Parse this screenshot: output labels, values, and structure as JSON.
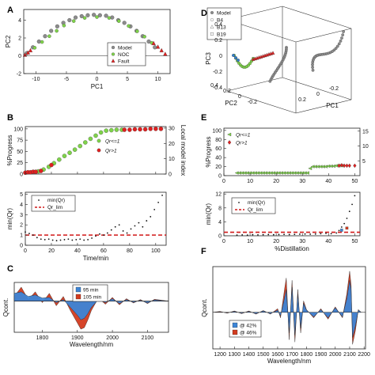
{
  "panels": {
    "A": "A",
    "B": "B",
    "C": "C",
    "D": "D",
    "E": "E",
    "F": "F"
  },
  "chart_data": [
    {
      "id": "A",
      "type": "scatter",
      "xlabel": "PC1",
      "ylabel": "PC2",
      "xlim": [
        -12,
        12
      ],
      "ylim": [
        -2,
        5.2
      ],
      "xticks": [
        -10,
        -5,
        0,
        5,
        10
      ],
      "yticks": [
        -2,
        0,
        2,
        4
      ],
      "xtick_labels": [
        "-10",
        "-5",
        "0",
        "5",
        "10"
      ],
      "ytick_labels": [
        "-2",
        "0",
        "2",
        "4"
      ],
      "legend": [
        "Model",
        "NOC",
        "Fault"
      ],
      "legend_position": "right",
      "series": [
        {
          "name": "Model",
          "color": "#8c8c8c",
          "x": [
            -11.5,
            -10.5,
            -9.5,
            -8.5,
            -7.5,
            -6.5,
            -5.5,
            -4.5,
            -3.5,
            -2.5,
            -1.5,
            -0.5,
            0.5,
            1.5,
            2.5,
            3.5,
            4.5,
            5.5,
            6.5,
            7.5,
            8.5,
            9.5
          ],
          "y": [
            0.3,
            0.95,
            1.6,
            2.2,
            2.8,
            3.3,
            3.7,
            4.0,
            4.3,
            4.45,
            4.55,
            4.6,
            4.55,
            4.5,
            4.3,
            4.0,
            3.7,
            3.3,
            2.8,
            2.2,
            1.6,
            0.95
          ]
        },
        {
          "name": "NOC",
          "color": "#7fd34a",
          "x": [
            -10.2,
            -9,
            -7.8,
            -6.6,
            -5.4,
            -3.8,
            -2,
            0,
            2,
            3.6,
            5.2,
            6.6,
            7.8,
            9
          ],
          "y": [
            0.9,
            1.55,
            2.2,
            2.8,
            3.4,
            3.9,
            4.25,
            4.35,
            4.25,
            3.9,
            3.35,
            2.75,
            2.15,
            1.45
          ]
        },
        {
          "name": "Fault",
          "color": "#e02020",
          "x": [
            -11.8,
            -11.3,
            -10.9,
            9.3,
            10,
            10.6,
            11.2
          ],
          "y": [
            0.1,
            0.35,
            0.6,
            1.4,
            1.0,
            0.6,
            0.2
          ]
        }
      ]
    },
    {
      "id": "B_top",
      "type": "scatter",
      "xlabel": "",
      "ylabel": "%Progress",
      "ylabel_right": "Local model index",
      "xlim": [
        0,
        108
      ],
      "ylim": [
        0,
        105
      ],
      "ylim_right": [
        0,
        31
      ],
      "xticks": [
        0,
        20,
        40,
        60,
        80,
        100
      ],
      "yticks": [
        0,
        25,
        50,
        75,
        100
      ],
      "yticks_right": [
        0,
        10,
        20,
        30
      ],
      "ytick_labels": [
        "0",
        "25",
        "50",
        "75",
        "100"
      ],
      "ytick_labels_right": [
        "0",
        "10",
        "20",
        "30"
      ],
      "legend": [
        "Qr<=1",
        "Qr>1"
      ],
      "legend_position": "center-right",
      "series": [
        {
          "name": "Qr<=1",
          "color": "#7fd34a",
          "x": [
            10,
            14,
            18,
            22,
            26,
            30,
            34,
            38,
            42,
            46,
            50,
            54,
            58,
            62,
            66,
            70,
            74
          ],
          "y": [
            6,
            10,
            16,
            24,
            32,
            40,
            47,
            54,
            62,
            70,
            78,
            85,
            92,
            96,
            97,
            98,
            98
          ]
        },
        {
          "name": "Qr>1",
          "color": "#e02020",
          "x": [
            0,
            2,
            4,
            6,
            8,
            12,
            20,
            76,
            80,
            84,
            88,
            92,
            96,
            100,
            104
          ],
          "y": [
            3,
            4,
            4,
            5,
            5,
            7,
            20,
            98,
            98,
            99,
            99,
            99,
            100,
            100,
            100
          ]
        }
      ]
    },
    {
      "id": "B_bottom",
      "type": "scatter",
      "xlabel": "Time/min",
      "ylabel": "min(Qr)",
      "xlim": [
        0,
        108
      ],
      "ylim": [
        0,
        5.2
      ],
      "xticks": [
        0,
        20,
        40,
        60,
        80,
        100
      ],
      "yticks": [
        0,
        1,
        2,
        3,
        4,
        5
      ],
      "xtick_labels": [
        "0",
        "20",
        "40",
        "60",
        "80",
        "100"
      ],
      "ytick_labels": [
        "0",
        "1",
        "2",
        "3",
        "4",
        "5"
      ],
      "legend": [
        "min(Qr)",
        "Qr_lim"
      ],
      "legend_position": "top-left",
      "threshold": 1,
      "series": [
        {
          "name": "min(Qr)",
          "color": "#111111",
          "x": [
            0,
            3,
            6,
            9,
            12,
            15,
            18,
            21,
            24,
            27,
            30,
            33,
            36,
            39,
            42,
            45,
            48,
            51,
            54,
            57,
            60,
            63,
            66,
            69,
            72,
            75,
            78,
            81,
            84,
            87,
            90,
            93,
            96,
            99,
            102,
            105
          ],
          "y": [
            1.3,
            1.15,
            1.0,
            0.75,
            0.6,
            0.55,
            0.6,
            0.5,
            0.45,
            0.5,
            0.55,
            0.6,
            0.5,
            0.55,
            0.6,
            0.5,
            0.55,
            0.7,
            0.9,
            1.1,
            1.0,
            1.2,
            1.5,
            1.8,
            2.0,
            1.4,
            1.2,
            1.6,
            1.9,
            2.2,
            1.8,
            2.4,
            2.8,
            3.5,
            4.2,
            4.9
          ]
        }
      ]
    },
    {
      "id": "C",
      "type": "area",
      "xlabel": "Wavelength/nm",
      "ylabel": "Qcont.",
      "xlim": [
        1720,
        2160
      ],
      "ylim": [
        -1,
        0.6
      ],
      "xticks": [
        1800,
        1900,
        2000,
        2100
      ],
      "xtick_labels": [
        "1800",
        "1900",
        "2000",
        "2100"
      ],
      "legend": [
        "95 min",
        "105 min"
      ],
      "legend_position": "top-center",
      "x": [
        1720,
        1740,
        1760,
        1780,
        1800,
        1820,
        1840,
        1860,
        1880,
        1900,
        1910,
        1920,
        1930,
        1940,
        1960,
        1980,
        2000,
        2020,
        2040,
        2060,
        2080,
        2100,
        2120,
        2140,
        2160
      ],
      "series": [
        {
          "name": "95 min",
          "color": "#3d85d6",
          "values": [
            0.25,
            0.3,
            0.15,
            0.2,
            0.1,
            0.12,
            -0.05,
            0.05,
            -0.2,
            -0.45,
            -0.6,
            -0.55,
            -0.4,
            -0.2,
            0.05,
            -0.05,
            0.08,
            -0.08,
            0.05,
            -0.04,
            0.03,
            -0.06,
            0.04,
            0.02,
            0.0
          ]
        },
        {
          "name": "105 min",
          "color": "#d33b1f",
          "values": [
            0.15,
            0.45,
            0.05,
            0.3,
            -0.05,
            0.25,
            -0.15,
            0.15,
            -0.3,
            -0.7,
            -0.9,
            -0.85,
            -0.6,
            -0.3,
            0.1,
            -0.1,
            0.12,
            -0.12,
            0.08,
            -0.06,
            0.05,
            -0.08,
            0.06,
            0.03,
            0.0
          ]
        }
      ]
    },
    {
      "id": "D",
      "type": "scatter",
      "dims": 3,
      "xlabel": "PC1",
      "ylabel": "PC2",
      "zlabel": "PC3",
      "x_ticks": [
        "0.2",
        "0",
        "-0.2"
      ],
      "y_ticks": [
        "0.4",
        "0.2",
        "0",
        "-0.2"
      ],
      "z_ticks": [
        "0.4",
        "0.2",
        "0",
        "-0.2",
        "-0.4"
      ],
      "legend": [
        "Model",
        "B4",
        "B13",
        "B19"
      ],
      "legend_position": "top-left",
      "series": [
        {
          "name": "Model",
          "color": "#8c8c8c"
        },
        {
          "name": "B4",
          "color": "#2f7fd0"
        },
        {
          "name": "B13",
          "color": "#7fd34a"
        },
        {
          "name": "B19",
          "color": "#e02020"
        }
      ]
    },
    {
      "id": "E_top",
      "type": "scatter",
      "xlabel": "",
      "ylabel": "%Progress",
      "ylabel_right": "Local model index",
      "xlim": [
        0,
        52
      ],
      "ylim": [
        0,
        105
      ],
      "ylim_right": [
        0,
        16
      ],
      "xticks": [
        0,
        10,
        20,
        30,
        40,
        50
      ],
      "yticks": [
        0,
        20,
        40,
        60,
        80,
        100
      ],
      "yticks_right": [
        5,
        10,
        15
      ],
      "xtick_labels": [
        "0",
        "10",
        "20",
        "30",
        "40",
        "50"
      ],
      "ytick_labels": [
        "0",
        "20",
        "40",
        "60",
        "80",
        "100"
      ],
      "ytick_labels_right": [
        "5",
        "10",
        "15"
      ],
      "legend": [
        "Qr<=1",
        "Qr>1"
      ],
      "legend_position": "top-left",
      "series": [
        {
          "name": "Qr<=1",
          "color": "#7fd34a",
          "x": [
            5,
            6,
            7,
            8,
            9,
            10,
            11,
            12,
            13,
            14,
            15,
            16,
            17,
            18,
            19,
            20,
            21,
            22,
            23,
            24,
            25,
            26,
            27,
            28,
            29,
            30,
            31,
            32,
            33,
            34,
            35,
            36,
            37,
            38,
            39,
            40,
            41,
            42,
            43,
            44,
            45
          ],
          "y": [
            6,
            6,
            6,
            6,
            6,
            6,
            6,
            6,
            6,
            6,
            6,
            6,
            6,
            6,
            6,
            6,
            6,
            6,
            6,
            6,
            6,
            6,
            6,
            6,
            6,
            6,
            6,
            6,
            16,
            20,
            20,
            20,
            20,
            20,
            20,
            21,
            21,
            21,
            22,
            22,
            22
          ]
        },
        {
          "name": "Qr>1",
          "color": "#e02020",
          "x": [
            44,
            45,
            46,
            47,
            48,
            50
          ],
          "y": [
            22,
            23,
            22,
            22,
            22,
            22
          ]
        }
      ]
    },
    {
      "id": "E_bottom",
      "type": "scatter",
      "xlabel": "%Distillation",
      "ylabel": "min(Qr)",
      "xlim": [
        0,
        52
      ],
      "ylim": [
        0,
        12.5
      ],
      "xticks": [
        0,
        10,
        20,
        30,
        40,
        50
      ],
      "yticks": [
        0,
        4,
        8,
        12
      ],
      "xtick_labels": [
        "0",
        "10",
        "20",
        "30",
        "40",
        "50"
      ],
      "ytick_labels": [
        "0",
        "4",
        "8",
        "12"
      ],
      "legend": [
        "min(Qr)",
        "Qr_lim"
      ],
      "legend_position": "top-left",
      "threshold": 1,
      "series": [
        {
          "name": "min(Qr)",
          "color": "#111111",
          "x": [
            5,
            7,
            9,
            11,
            13,
            15,
            17,
            19,
            21,
            23,
            25,
            27,
            29,
            31,
            33,
            35,
            37,
            39,
            41,
            43,
            44,
            45,
            46,
            47,
            48,
            49,
            50
          ],
          "y": [
            0.2,
            0.25,
            0.2,
            0.3,
            0.25,
            0.3,
            0.35,
            0.3,
            0.35,
            0.4,
            0.35,
            0.4,
            0.45,
            0.5,
            0.45,
            0.5,
            0.6,
            0.7,
            0.6,
            0.8,
            1.5,
            2.5,
            3.5,
            5.0,
            7.0,
            9.0,
            11.5
          ]
        }
      ]
    },
    {
      "id": "F",
      "type": "area",
      "xlabel": "Wavelength/nm",
      "ylabel": "Qcont.",
      "xlim": [
        1150,
        2210
      ],
      "ylim": [
        -0.8,
        1.0
      ],
      "xticks": [
        1200,
        1300,
        1400,
        1500,
        1600,
        1700,
        1800,
        1900,
        2000,
        2100,
        2200
      ],
      "xtick_labels": [
        "1200",
        "1300",
        "1400",
        "1500",
        "1600",
        "1700",
        "1800",
        "1900",
        "2000",
        "2100",
        "2200"
      ],
      "legend": [
        "@ 42%",
        "@ 46%"
      ],
      "legend_position": "bottom-left",
      "x": [
        1150,
        1200,
        1250,
        1300,
        1350,
        1400,
        1450,
        1500,
        1550,
        1600,
        1620,
        1650,
        1660,
        1680,
        1700,
        1720,
        1740,
        1760,
        1780,
        1800,
        1850,
        1900,
        1950,
        2000,
        2050,
        2080,
        2100,
        2110,
        2120,
        2140,
        2160,
        2180,
        2210
      ],
      "series": [
        {
          "name": "@ 42%",
          "color": "#3d85d6",
          "values": [
            0,
            0.01,
            -0.01,
            0.02,
            -0.02,
            0.02,
            -0.03,
            0.03,
            -0.03,
            0.05,
            -0.08,
            0.35,
            0.5,
            -0.45,
            0.55,
            -0.5,
            0.4,
            -0.35,
            0.2,
            0.05,
            -0.1,
            0.06,
            -0.12,
            0.1,
            -0.1,
            0.3,
            0.7,
            0.5,
            -0.55,
            -0.3,
            0.05,
            0,
            0
          ]
        },
        {
          "name": "@ 46%",
          "color": "#d33b1f",
          "values": [
            0,
            0.02,
            -0.02,
            0.03,
            -0.03,
            0.03,
            -0.04,
            0.04,
            -0.04,
            0.08,
            -0.12,
            0.55,
            0.75,
            -0.6,
            0.7,
            -0.65,
            0.5,
            -0.45,
            0.25,
            0.06,
            -0.12,
            0.08,
            -0.15,
            0.12,
            -0.12,
            0.4,
            0.9,
            0.6,
            -0.7,
            -0.4,
            0.06,
            0,
            0
          ]
        }
      ]
    }
  ]
}
